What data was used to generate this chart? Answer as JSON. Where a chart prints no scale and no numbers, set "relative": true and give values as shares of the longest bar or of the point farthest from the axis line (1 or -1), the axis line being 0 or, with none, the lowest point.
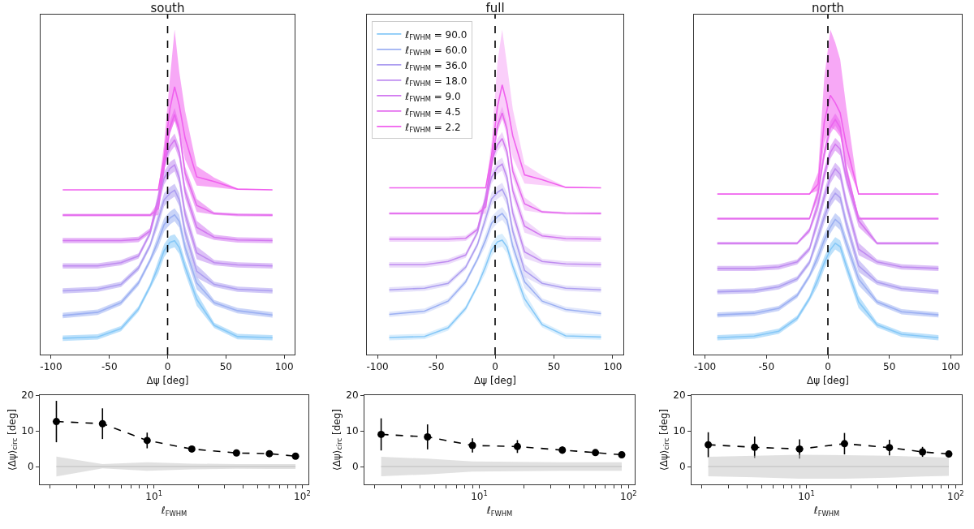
{
  "chart_data": [
    {
      "type": "line",
      "title": "south",
      "xlabel": "Δψ [deg]",
      "relative": true,
      "xlim": [
        -109,
        109
      ],
      "xticks": [
        -100,
        -50,
        0,
        50,
        100
      ],
      "legend": false,
      "x": [
        -90,
        -60,
        -40,
        -25,
        -15,
        -8,
        -3,
        2,
        6,
        10,
        15,
        25,
        40,
        60,
        90
      ],
      "ref_lines": [
        {
          "axis": "x",
          "value": 0,
          "color": "#000000",
          "line_style": "dashed"
        }
      ],
      "series": [
        {
          "color": "#86c8f7",
          "values": [
            0.061,
            0.066,
            0.097,
            0.17,
            0.255,
            0.328,
            0.388,
            0.419,
            0.425,
            0.4,
            0.328,
            0.206,
            0.109,
            0.067,
            0.063
          ],
          "lower": [
            0.051,
            0.056,
            0.087,
            0.16,
            0.245,
            0.304,
            0.364,
            0.395,
            0.401,
            0.376,
            0.304,
            0.182,
            0.099,
            0.057,
            0.053
          ],
          "upper": [
            0.071,
            0.076,
            0.107,
            0.18,
            0.265,
            0.352,
            0.412,
            0.443,
            0.449,
            0.424,
            0.352,
            0.23,
            0.119,
            0.077,
            0.073
          ]
        },
        {
          "color": "#9cb0f2",
          "values": [
            0.146,
            0.158,
            0.194,
            0.267,
            0.352,
            0.425,
            0.485,
            0.51,
            0.522,
            0.498,
            0.4,
            0.267,
            0.194,
            0.164,
            0.148
          ],
          "lower": [
            0.136,
            0.148,
            0.184,
            0.257,
            0.342,
            0.401,
            0.461,
            0.486,
            0.498,
            0.474,
            0.376,
            0.243,
            0.184,
            0.154,
            0.138
          ],
          "upper": [
            0.156,
            0.168,
            0.204,
            0.277,
            0.362,
            0.449,
            0.509,
            0.534,
            0.546,
            0.522,
            0.424,
            0.291,
            0.204,
            0.174,
            0.158
          ]
        },
        {
          "color": "#ad9ef0",
          "values": [
            0.238,
            0.244,
            0.262,
            0.323,
            0.408,
            0.505,
            0.578,
            0.602,
            0.614,
            0.578,
            0.456,
            0.311,
            0.262,
            0.244,
            0.238
          ],
          "lower": [
            0.228,
            0.234,
            0.252,
            0.313,
            0.398,
            0.481,
            0.554,
            0.578,
            0.59,
            0.554,
            0.432,
            0.287,
            0.252,
            0.234,
            0.228
          ],
          "upper": [
            0.248,
            0.254,
            0.272,
            0.333,
            0.418,
            0.529,
            0.602,
            0.626,
            0.638,
            0.602,
            0.48,
            0.335,
            0.272,
            0.254,
            0.248
          ]
        },
        {
          "color": "#bf8cf0",
          "values": [
            0.331,
            0.331,
            0.343,
            0.368,
            0.453,
            0.574,
            0.659,
            0.695,
            0.708,
            0.659,
            0.525,
            0.38,
            0.343,
            0.335,
            0.331
          ],
          "lower": [
            0.321,
            0.321,
            0.333,
            0.358,
            0.443,
            0.55,
            0.635,
            0.671,
            0.684,
            0.635,
            0.501,
            0.356,
            0.333,
            0.325,
            0.321
          ],
          "upper": [
            0.341,
            0.341,
            0.353,
            0.378,
            0.463,
            0.598,
            0.683,
            0.719,
            0.732,
            0.683,
            0.549,
            0.404,
            0.353,
            0.345,
            0.341
          ]
        },
        {
          "color": "#d279f0",
          "values": [
            0.426,
            0.426,
            0.426,
            0.43,
            0.462,
            0.584,
            0.717,
            0.778,
            0.802,
            0.754,
            0.608,
            0.475,
            0.438,
            0.428,
            0.426
          ],
          "lower": [
            0.416,
            0.416,
            0.416,
            0.42,
            0.452,
            0.56,
            0.693,
            0.754,
            0.778,
            0.73,
            0.584,
            0.451,
            0.428,
            0.418,
            0.416
          ],
          "upper": [
            0.436,
            0.436,
            0.436,
            0.44,
            0.472,
            0.608,
            0.741,
            0.802,
            0.826,
            0.778,
            0.632,
            0.499,
            0.448,
            0.438,
            0.436
          ]
        },
        {
          "color": "#e46cee",
          "values": [
            0.521,
            0.521,
            0.521,
            0.521,
            0.521,
            0.545,
            0.703,
            0.848,
            0.897,
            0.836,
            0.678,
            0.557,
            0.527,
            0.522,
            0.521
          ],
          "lower": [
            0.516,
            0.516,
            0.516,
            0.516,
            0.516,
            0.521,
            0.679,
            0.824,
            0.873,
            0.812,
            0.654,
            0.533,
            0.522,
            0.517,
            0.516
          ],
          "upper": [
            0.526,
            0.526,
            0.526,
            0.526,
            0.526,
            0.569,
            0.727,
            0.872,
            0.921,
            0.86,
            0.702,
            0.581,
            0.532,
            0.527,
            0.526
          ]
        },
        {
          "color": "#f060ee",
          "values": [
            0.615,
            0.615,
            0.615,
            0.615,
            0.615,
            0.615,
            0.737,
            0.919,
            1.0,
            0.931,
            0.809,
            0.664,
            0.646,
            0.618,
            0.615
          ],
          "lower": [
            0.615,
            0.615,
            0.615,
            0.615,
            0.615,
            0.615,
            0.68,
            0.825,
            0.874,
            0.837,
            0.728,
            0.631,
            0.625,
            0.615,
            0.615
          ],
          "upper": [
            0.615,
            0.615,
            0.615,
            0.615,
            0.615,
            0.615,
            0.789,
            1.032,
            1.214,
            1.056,
            0.91,
            0.704,
            0.661,
            0.62,
            0.615
          ]
        }
      ]
    },
    {
      "type": "line",
      "title": "full",
      "xlabel": "Δψ [deg]",
      "relative": true,
      "xlim": [
        -109,
        109
      ],
      "xticks": [
        -100,
        -50,
        0,
        50,
        100
      ],
      "legend": "top left",
      "x": [
        -90,
        -60,
        -40,
        -25,
        -15,
        -8,
        -3,
        2,
        6,
        10,
        15,
        25,
        40,
        60,
        90
      ],
      "ref_lines": [
        {
          "axis": "x",
          "value": 0,
          "color": "#000000",
          "line_style": "dashed"
        }
      ],
      "series": [
        {
          "name": "ℓ$_{FWHM}$ = 90.0",
          "color": "#86c8f7",
          "values": [
            0.063,
            0.067,
            0.099,
            0.171,
            0.255,
            0.328,
            0.388,
            0.418,
            0.424,
            0.4,
            0.328,
            0.207,
            0.111,
            0.069,
            0.065
          ],
          "lower": [
            0.053,
            0.057,
            0.089,
            0.161,
            0.245,
            0.304,
            0.364,
            0.394,
            0.4,
            0.376,
            0.304,
            0.183,
            0.101,
            0.059,
            0.055
          ],
          "upper": [
            0.073,
            0.077,
            0.109,
            0.181,
            0.265,
            0.352,
            0.412,
            0.442,
            0.448,
            0.424,
            0.352,
            0.231,
            0.121,
            0.079,
            0.075
          ]
        },
        {
          "name": "ℓ$_{FWHM}$ = 60.0",
          "color": "#9cb0f2",
          "values": [
            0.149,
            0.161,
            0.198,
            0.27,
            0.354,
            0.426,
            0.487,
            0.511,
            0.523,
            0.499,
            0.402,
            0.27,
            0.198,
            0.167,
            0.152
          ],
          "lower": [
            0.139,
            0.151,
            0.188,
            0.26,
            0.344,
            0.402,
            0.463,
            0.487,
            0.499,
            0.475,
            0.378,
            0.246,
            0.188,
            0.157,
            0.142
          ],
          "upper": [
            0.159,
            0.171,
            0.208,
            0.28,
            0.364,
            0.45,
            0.511,
            0.535,
            0.547,
            0.523,
            0.426,
            0.294,
            0.208,
            0.177,
            0.162
          ]
        },
        {
          "name": "ℓ$_{FWHM}$ = 36.0",
          "color": "#ad9ef0",
          "values": [
            0.24,
            0.246,
            0.264,
            0.324,
            0.408,
            0.505,
            0.577,
            0.601,
            0.613,
            0.577,
            0.457,
            0.312,
            0.264,
            0.246,
            0.24
          ],
          "lower": [
            0.23,
            0.236,
            0.254,
            0.314,
            0.398,
            0.481,
            0.553,
            0.577,
            0.589,
            0.553,
            0.433,
            0.288,
            0.254,
            0.236,
            0.23
          ],
          "upper": [
            0.25,
            0.256,
            0.274,
            0.334,
            0.418,
            0.529,
            0.601,
            0.625,
            0.637,
            0.601,
            0.481,
            0.336,
            0.274,
            0.256,
            0.25
          ]
        },
        {
          "name": "ℓ$_{FWHM}$ = 18.0",
          "color": "#bf8cf0",
          "values": [
            0.333,
            0.333,
            0.345,
            0.369,
            0.453,
            0.573,
            0.658,
            0.694,
            0.706,
            0.658,
            0.525,
            0.381,
            0.345,
            0.336,
            0.333
          ],
          "lower": [
            0.323,
            0.323,
            0.335,
            0.359,
            0.443,
            0.549,
            0.634,
            0.67,
            0.682,
            0.634,
            0.501,
            0.357,
            0.335,
            0.326,
            0.323
          ],
          "upper": [
            0.343,
            0.343,
            0.355,
            0.379,
            0.463,
            0.597,
            0.682,
            0.718,
            0.73,
            0.682,
            0.549,
            0.405,
            0.355,
            0.346,
            0.343
          ]
        },
        {
          "name": "ℓ$_{FWHM}$ = 9.0",
          "color": "#d279f0",
          "values": [
            0.428,
            0.428,
            0.428,
            0.431,
            0.464,
            0.584,
            0.717,
            0.777,
            0.801,
            0.753,
            0.608,
            0.476,
            0.44,
            0.43,
            0.428
          ],
          "lower": [
            0.418,
            0.418,
            0.418,
            0.421,
            0.454,
            0.56,
            0.693,
            0.753,
            0.777,
            0.729,
            0.584,
            0.452,
            0.43,
            0.42,
            0.418
          ],
          "upper": [
            0.438,
            0.438,
            0.438,
            0.441,
            0.474,
            0.608,
            0.741,
            0.801,
            0.825,
            0.777,
            0.632,
            0.5,
            0.45,
            0.44,
            0.438
          ]
        },
        {
          "name": "ℓ$_{FWHM}$ = 4.5",
          "color": "#e46cee",
          "values": [
            0.523,
            0.523,
            0.523,
            0.523,
            0.523,
            0.547,
            0.704,
            0.848,
            0.896,
            0.836,
            0.68,
            0.559,
            0.529,
            0.524,
            0.523
          ],
          "lower": [
            0.518,
            0.518,
            0.518,
            0.518,
            0.518,
            0.523,
            0.68,
            0.824,
            0.872,
            0.812,
            0.656,
            0.535,
            0.524,
            0.519,
            0.518
          ],
          "upper": [
            0.528,
            0.528,
            0.528,
            0.528,
            0.528,
            0.571,
            0.728,
            0.872,
            0.92,
            0.86,
            0.704,
            0.583,
            0.534,
            0.529,
            0.528
          ]
        },
        {
          "name": "ℓ$_{FWHM}$ = 2.2",
          "color": "#f060ee",
          "values": [
            0.618,
            0.618,
            0.618,
            0.618,
            0.618,
            0.618,
            0.739,
            0.919,
            1.0,
            0.931,
            0.811,
            0.666,
            0.648,
            0.62,
            0.618
          ],
          "lower": [
            0.618,
            0.618,
            0.618,
            0.618,
            0.618,
            0.618,
            0.682,
            0.826,
            0.875,
            0.839,
            0.73,
            0.634,
            0.628,
            0.618,
            0.618
          ],
          "upper": [
            0.618,
            0.618,
            0.618,
            0.618,
            0.618,
            0.618,
            0.79,
            1.084,
            1.205,
            1.078,
            0.911,
            0.706,
            0.664,
            0.623,
            0.618
          ]
        }
      ]
    },
    {
      "type": "line",
      "title": "north",
      "xlabel": "Δψ [deg]",
      "relative": true,
      "xlim": [
        -109,
        109
      ],
      "xticks": [
        -100,
        -50,
        0,
        50,
        100
      ],
      "legend": false,
      "x": [
        -90,
        -60,
        -40,
        -25,
        -15,
        -8,
        -3,
        2,
        6,
        10,
        15,
        25,
        40,
        60,
        90
      ],
      "ref_lines": [
        {
          "axis": "x",
          "value": 0,
          "color": "#000000",
          "line_style": "dashed"
        }
      ],
      "series": [
        {
          "color": "#86c8f7",
          "values": [
            0.065,
            0.071,
            0.09,
            0.14,
            0.216,
            0.291,
            0.353,
            0.404,
            0.429,
            0.416,
            0.341,
            0.203,
            0.115,
            0.078,
            0.065
          ],
          "lower": [
            0.055,
            0.061,
            0.08,
            0.13,
            0.206,
            0.267,
            0.329,
            0.38,
            0.405,
            0.392,
            0.317,
            0.179,
            0.105,
            0.068,
            0.055
          ],
          "upper": [
            0.075,
            0.081,
            0.1,
            0.15,
            0.226,
            0.315,
            0.377,
            0.428,
            0.453,
            0.44,
            0.365,
            0.227,
            0.125,
            0.088,
            0.075
          ]
        },
        {
          "color": "#9cb0f2",
          "values": [
            0.153,
            0.159,
            0.178,
            0.228,
            0.303,
            0.378,
            0.441,
            0.491,
            0.521,
            0.504,
            0.429,
            0.291,
            0.203,
            0.165,
            0.153
          ],
          "lower": [
            0.143,
            0.149,
            0.168,
            0.218,
            0.293,
            0.354,
            0.417,
            0.467,
            0.497,
            0.48,
            0.405,
            0.267,
            0.193,
            0.155,
            0.143
          ],
          "upper": [
            0.163,
            0.169,
            0.188,
            0.238,
            0.313,
            0.402,
            0.465,
            0.515,
            0.545,
            0.528,
            0.453,
            0.315,
            0.213,
            0.175,
            0.163
          ]
        },
        {
          "color": "#ad9ef0",
          "values": [
            0.242,
            0.246,
            0.261,
            0.292,
            0.355,
            0.455,
            0.53,
            0.593,
            0.622,
            0.605,
            0.505,
            0.342,
            0.279,
            0.254,
            0.242
          ],
          "lower": [
            0.232,
            0.236,
            0.251,
            0.282,
            0.345,
            0.431,
            0.506,
            0.569,
            0.598,
            0.581,
            0.481,
            0.318,
            0.269,
            0.244,
            0.232
          ],
          "upper": [
            0.252,
            0.256,
            0.271,
            0.302,
            0.365,
            0.479,
            0.554,
            0.617,
            0.646,
            0.629,
            0.529,
            0.366,
            0.289,
            0.264,
            0.252
          ]
        },
        {
          "color": "#bf8cf0",
          "values": [
            0.332,
            0.332,
            0.338,
            0.357,
            0.407,
            0.52,
            0.608,
            0.683,
            0.716,
            0.695,
            0.583,
            0.407,
            0.357,
            0.338,
            0.332
          ],
          "lower": [
            0.322,
            0.322,
            0.328,
            0.347,
            0.397,
            0.496,
            0.584,
            0.659,
            0.692,
            0.671,
            0.559,
            0.383,
            0.347,
            0.328,
            0.322
          ],
          "upper": [
            0.342,
            0.342,
            0.348,
            0.367,
            0.417,
            0.544,
            0.632,
            0.707,
            0.74,
            0.719,
            0.607,
            0.431,
            0.367,
            0.348,
            0.342
          ]
        },
        {
          "color": "#d279f0",
          "values": [
            0.429,
            0.429,
            0.429,
            0.429,
            0.479,
            0.579,
            0.692,
            0.779,
            0.811,
            0.792,
            0.679,
            0.516,
            0.429,
            0.429,
            0.429
          ],
          "lower": [
            0.424,
            0.424,
            0.424,
            0.424,
            0.469,
            0.555,
            0.668,
            0.755,
            0.787,
            0.768,
            0.655,
            0.492,
            0.424,
            0.424,
            0.424
          ],
          "upper": [
            0.434,
            0.434,
            0.434,
            0.434,
            0.489,
            0.603,
            0.716,
            0.803,
            0.835,
            0.816,
            0.703,
            0.54,
            0.434,
            0.434,
            0.434
          ]
        },
        {
          "color": "#e46cee",
          "values": [
            0.524,
            0.524,
            0.524,
            0.524,
            0.524,
            0.624,
            0.774,
            0.875,
            0.906,
            0.875,
            0.712,
            0.524,
            0.524,
            0.524,
            0.524
          ],
          "lower": [
            0.519,
            0.519,
            0.519,
            0.519,
            0.519,
            0.6,
            0.75,
            0.851,
            0.882,
            0.851,
            0.688,
            0.519,
            0.519,
            0.519,
            0.519
          ],
          "upper": [
            0.529,
            0.529,
            0.529,
            0.529,
            0.529,
            0.648,
            0.798,
            0.899,
            0.93,
            0.899,
            0.736,
            0.529,
            0.529,
            0.529,
            0.529
          ]
        },
        {
          "color": "#f060ee",
          "values": [
            0.619,
            0.619,
            0.619,
            0.619,
            0.619,
            0.657,
            0.895,
            1.0,
            0.97,
            0.932,
            0.807,
            0.619,
            0.619,
            0.619,
            0.619
          ],
          "lower": [
            0.619,
            0.619,
            0.619,
            0.619,
            0.619,
            0.632,
            0.815,
            0.877,
            0.865,
            0.84,
            0.739,
            0.619,
            0.619,
            0.619,
            0.619
          ],
          "upper": [
            0.619,
            0.619,
            0.619,
            0.619,
            0.619,
            0.702,
            1.065,
            1.253,
            1.203,
            1.138,
            0.952,
            0.619,
            0.619,
            0.619,
            0.619
          ]
        }
      ]
    },
    {
      "type": "line",
      "xlabel": "ℓ$_{FWHM}$",
      "ylabel": "⟨Δψ⟩$_{circ}$ [deg]",
      "log": "x",
      "xlim": [
        1.7,
        110
      ],
      "xticks": [
        {
          "value": 2,
          "label": null
        },
        {
          "value": 3,
          "label": null
        },
        {
          "value": 4,
          "label": null
        },
        {
          "value": 5,
          "label": null
        },
        {
          "value": 6,
          "label": null
        },
        {
          "value": 7,
          "label": null
        },
        {
          "value": 8,
          "label": null
        },
        {
          "value": 9,
          "label": null
        },
        {
          "value": 10,
          "label": "10$^{1}$"
        },
        {
          "value": 20,
          "label": null
        },
        {
          "value": 30,
          "label": null
        },
        {
          "value": 40,
          "label": null
        },
        {
          "value": 50,
          "label": null
        },
        {
          "value": 60,
          "label": null
        },
        {
          "value": 70,
          "label": null
        },
        {
          "value": 80,
          "label": null
        },
        {
          "value": 90,
          "label": null
        },
        {
          "value": 100,
          "label": "10$^{2}$"
        }
      ],
      "ylim": [
        -5,
        20
      ],
      "yticks": [
        0,
        10,
        20
      ],
      "legend": false,
      "x": [
        2.2,
        4.5,
        9,
        18,
        36,
        60,
        90
      ],
      "series": [
        {
          "color": "#000000",
          "marker": "circle",
          "line_style": "dashed",
          "values": [
            12.6,
            12.0,
            7.3,
            4.9,
            3.8,
            3.6,
            2.9
          ],
          "errors": [
            5.8,
            4.3,
            2.2,
            0.6,
            0.5,
            0.5,
            0.5
          ]
        },
        {
          "color": "#c8c8c8",
          "values": [
            0,
            0,
            0,
            0,
            0,
            0,
            0
          ],
          "lower": [
            -2.8,
            -0.5,
            -1.2,
            -0.8,
            -0.6,
            -0.7,
            -0.7
          ],
          "upper": [
            2.8,
            0.7,
            1.2,
            0.8,
            0.7,
            0.7,
            0.7
          ]
        }
      ]
    },
    {
      "type": "line",
      "xlabel": "ℓ$_{FWHM}$",
      "ylabel": "⟨Δψ⟩$_{circ}$ [deg]",
      "log": "x",
      "xlim": [
        1.7,
        110
      ],
      "xticks": [
        {
          "value": 2,
          "label": null
        },
        {
          "value": 3,
          "label": null
        },
        {
          "value": 4,
          "label": null
        },
        {
          "value": 5,
          "label": null
        },
        {
          "value": 6,
          "label": null
        },
        {
          "value": 7,
          "label": null
        },
        {
          "value": 8,
          "label": null
        },
        {
          "value": 9,
          "label": null
        },
        {
          "value": 10,
          "label": "10$^{1}$"
        },
        {
          "value": 20,
          "label": null
        },
        {
          "value": 30,
          "label": null
        },
        {
          "value": 40,
          "label": null
        },
        {
          "value": 50,
          "label": null
        },
        {
          "value": 60,
          "label": null
        },
        {
          "value": 70,
          "label": null
        },
        {
          "value": 80,
          "label": null
        },
        {
          "value": 90,
          "label": null
        },
        {
          "value": 100,
          "label": "10$^{2}$"
        }
      ],
      "ylim": [
        -5,
        20
      ],
      "yticks": [
        0,
        10,
        20
      ],
      "legend": false,
      "x": [
        2.2,
        4.5,
        9,
        18,
        36,
        60,
        90
      ],
      "series": [
        {
          "color": "#000000",
          "marker": "circle",
          "line_style": "dashed",
          "values": [
            9.0,
            8.3,
            5.9,
            5.6,
            4.6,
            3.9,
            3.3
          ],
          "errors": [
            4.5,
            3.5,
            2.0,
            1.8,
            1.0,
            0.6,
            0.5
          ]
        },
        {
          "color": "#c8c8c8",
          "values": [
            0,
            0,
            0,
            0,
            0,
            0,
            0
          ],
          "lower": [
            -2.7,
            -2.2,
            -1.4,
            -1.3,
            -1.2,
            -1.2,
            -1.2
          ],
          "upper": [
            2.7,
            2.2,
            1.4,
            1.3,
            1.2,
            1.2,
            1.2
          ]
        }
      ]
    },
    {
      "type": "line",
      "xlabel": "ℓ$_{FWHM}$",
      "ylabel": "⟨Δψ⟩$_{circ}$ [deg]",
      "log": "x",
      "xlim": [
        1.7,
        110
      ],
      "xticks": [
        {
          "value": 2,
          "label": null
        },
        {
          "value": 3,
          "label": null
        },
        {
          "value": 4,
          "label": null
        },
        {
          "value": 5,
          "label": null
        },
        {
          "value": 6,
          "label": null
        },
        {
          "value": 7,
          "label": null
        },
        {
          "value": 8,
          "label": null
        },
        {
          "value": 9,
          "label": null
        },
        {
          "value": 10,
          "label": "10$^{1}$"
        },
        {
          "value": 20,
          "label": null
        },
        {
          "value": 30,
          "label": null
        },
        {
          "value": 40,
          "label": null
        },
        {
          "value": 50,
          "label": null
        },
        {
          "value": 60,
          "label": null
        },
        {
          "value": 70,
          "label": null
        },
        {
          "value": 80,
          "label": null
        },
        {
          "value": 90,
          "label": null
        },
        {
          "value": 100,
          "label": "10$^{2}$"
        }
      ],
      "ylim": [
        -5,
        20
      ],
      "yticks": [
        0,
        10,
        20
      ],
      "legend": false,
      "x": [
        2.2,
        4.5,
        9,
        18,
        36,
        60,
        90
      ],
      "series": [
        {
          "color": "#000000",
          "marker": "circle",
          "line_style": "dashed",
          "values": [
            6.1,
            5.4,
            4.9,
            6.4,
            5.3,
            4.1,
            3.5
          ],
          "errors": [
            3.5,
            3.0,
            2.7,
            3.0,
            2.2,
            1.4,
            0.9
          ]
        },
        {
          "color": "#c8c8c8",
          "values": [
            0,
            0,
            0,
            0,
            0,
            0,
            0
          ],
          "lower": [
            -2.7,
            -3.0,
            -3.4,
            -3.4,
            -3.1,
            -2.8,
            -2.6
          ],
          "upper": [
            2.7,
            3.0,
            3.3,
            3.2,
            3.0,
            2.7,
            2.5
          ]
        }
      ]
    }
  ]
}
